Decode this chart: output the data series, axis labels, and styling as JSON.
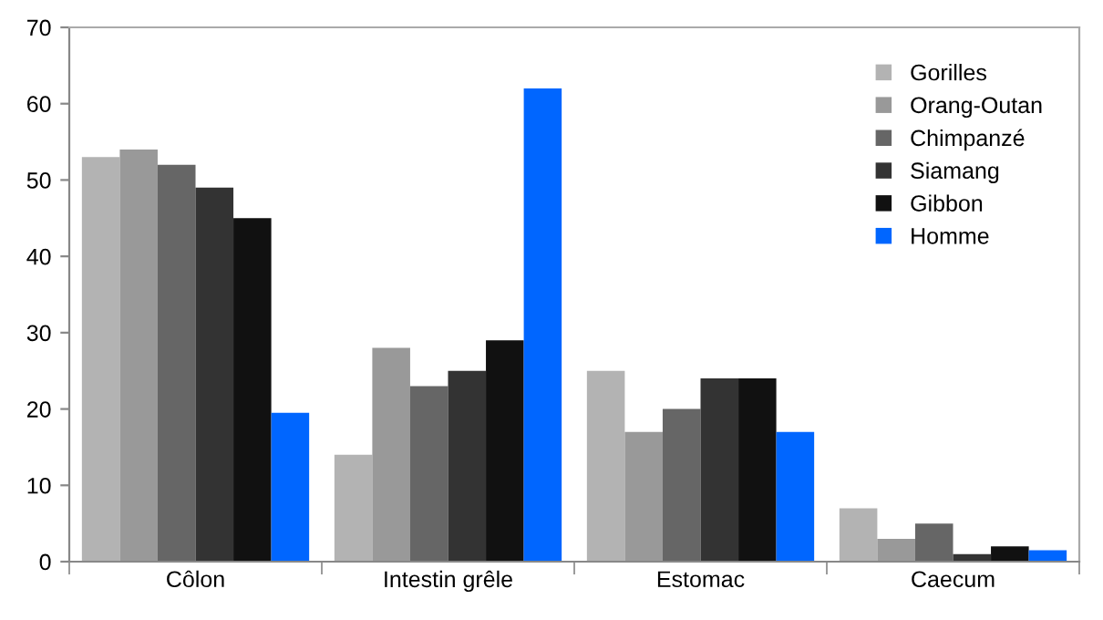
{
  "chart_data": {
    "type": "bar",
    "categories": [
      "Côlon",
      "Intestin grêle",
      "Estomac",
      "Caecum"
    ],
    "series": [
      {
        "name": "Gorilles",
        "color": "#b3b3b3",
        "values": [
          53,
          14,
          25,
          7
        ]
      },
      {
        "name": "Orang-Outan",
        "color": "#999999",
        "values": [
          54,
          28,
          17,
          3
        ]
      },
      {
        "name": "Chimpanzé",
        "color": "#666666",
        "values": [
          52,
          23,
          20,
          5
        ]
      },
      {
        "name": "Siamang",
        "color": "#333333",
        "values": [
          49,
          25,
          24,
          1
        ]
      },
      {
        "name": "Gibbon",
        "color": "#111111",
        "values": [
          45,
          29,
          24,
          2
        ]
      },
      {
        "name": "Homme",
        "color": "#0066ff",
        "values": [
          19.5,
          62,
          17,
          1.5
        ]
      }
    ],
    "ylim": [
      0,
      70
    ],
    "yticks": [
      0,
      10,
      20,
      30,
      40,
      50,
      60,
      70
    ],
    "grid": false,
    "legend": "top right"
  }
}
